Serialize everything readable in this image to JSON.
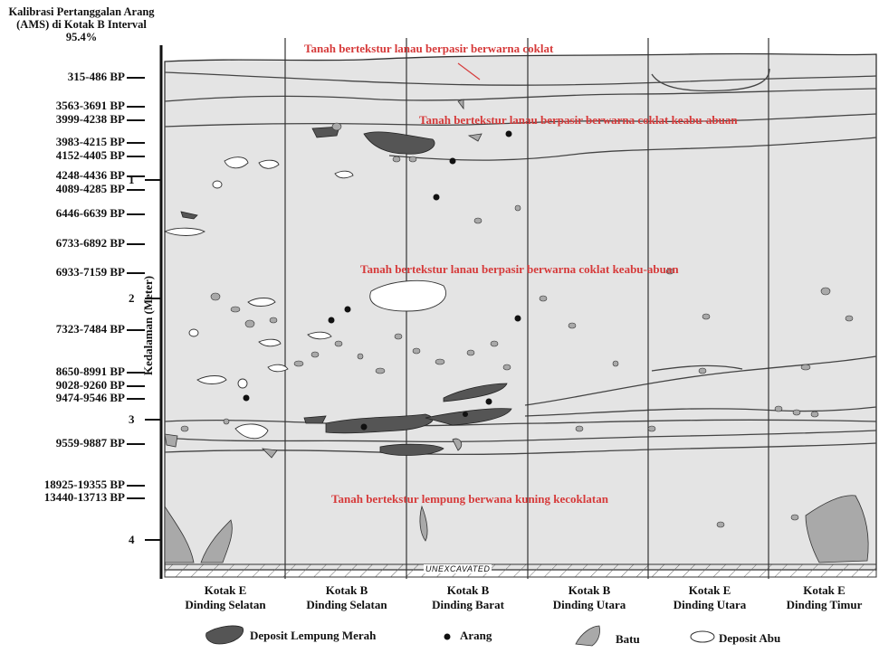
{
  "calibration_title": "Kalibrasi Pertanggalan Arang (AMS) di Kotak B Interval 95.4%",
  "dates": [
    "315-486 BP",
    "3563-3691 BP",
    "3999-4238 BP",
    "3983-4215 BP",
    "4152-4405 BP",
    "4248-4436 BP",
    "4089-4285 BP",
    "6446-6639 BP",
    "6733-6892 BP",
    "6933-7159 BP",
    "7323-7484 BP",
    "8650-8991 BP",
    "9028-9260 BP",
    "9474-9546 BP",
    "9559-9887 BP",
    "18925-19355 BP",
    "13440-13713 BP"
  ],
  "depth_axis": {
    "label": "Kedalaman (Meter)",
    "ticks": [
      "1",
      "2",
      "3",
      "4"
    ]
  },
  "layers": [
    "Tanah bertekstur lanau berpasir berwarna coklat",
    "Tanah bertekstur lanau berpasir berwarna coklat keabu-abuan",
    "Tanah bertekstur lanau berpasir berwarna coklat keabu-abuan",
    "Tanah bertekstur lempung berwana kuning kecoklatan"
  ],
  "unexcavated": "UNEXCAVATED",
  "columns": [
    {
      "line1": "Kotak E",
      "line2": "Dinding Selatan"
    },
    {
      "line1": "Kotak B",
      "line2": "Dinding Selatan"
    },
    {
      "line1": "Kotak B",
      "line2": "Dinding Barat"
    },
    {
      "line1": "Kotak B",
      "line2": "Dinding Utara"
    },
    {
      "line1": "Kotak E",
      "line2": "Dinding Utara"
    },
    {
      "line1": "Kotak E",
      "line2": "Dinding Timur"
    }
  ],
  "legend": {
    "clay": "Deposit Lempung Merah",
    "charcoal": "Arang",
    "stone": "Batu",
    "ash": "Deposit Abu"
  },
  "colors": {
    "soil": "#e4e4e4",
    "clay": "#555555",
    "stone": "#a9a9a9",
    "ash": "#ffffff",
    "label_red": "#d63a3a"
  }
}
